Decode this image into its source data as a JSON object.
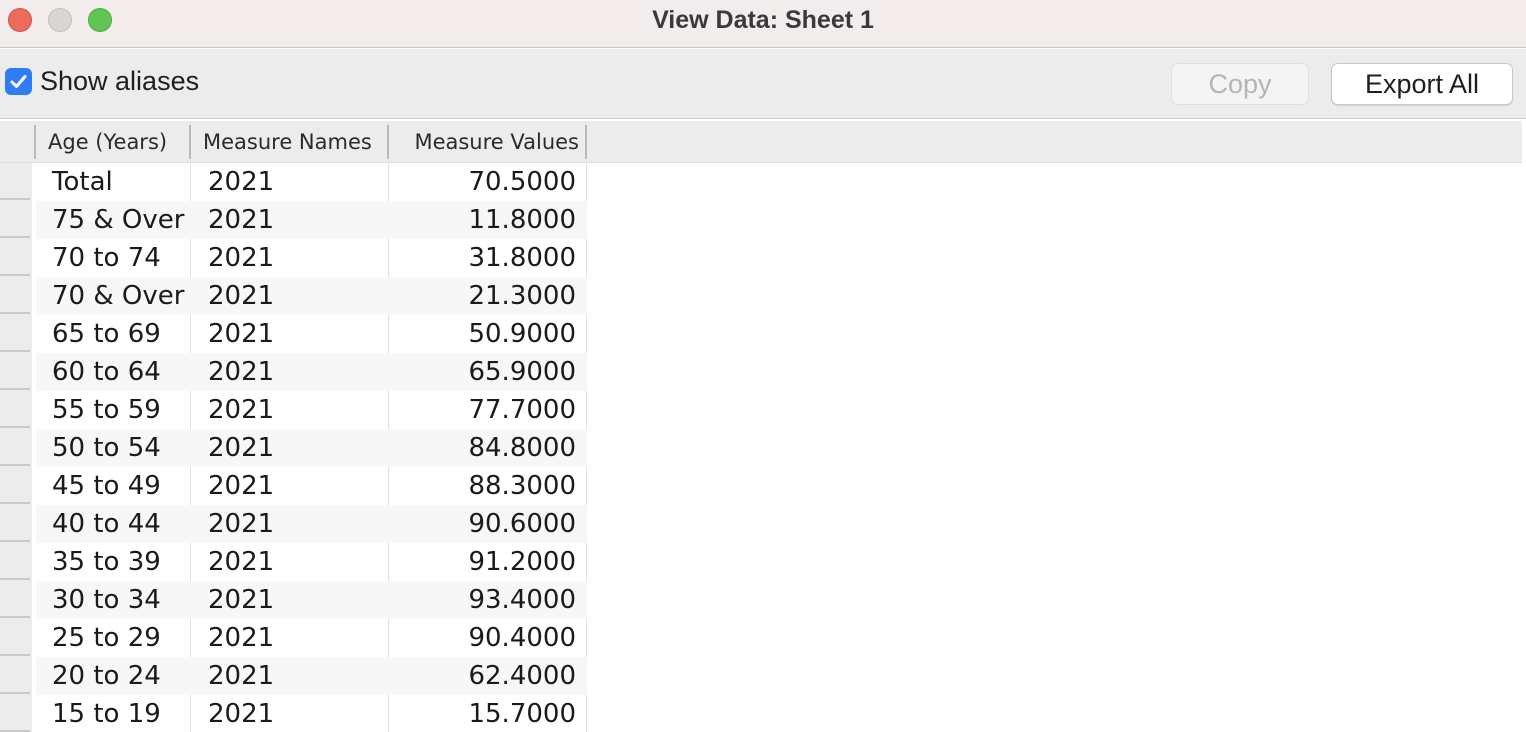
{
  "window": {
    "title": "View Data: Sheet 1"
  },
  "toolbar": {
    "show_aliases_label": "Show aliases",
    "show_aliases_checked": true,
    "copy_label": "Copy",
    "export_all_label": "Export All"
  },
  "table": {
    "headers": {
      "age": "Age (Years)",
      "names": "Measure Names",
      "values": "Measure Values"
    },
    "rows": [
      {
        "age": "Total",
        "names": "2021",
        "values": "70.5000"
      },
      {
        "age": "75 & Over",
        "names": "2021",
        "values": "11.8000"
      },
      {
        "age": "70 to 74",
        "names": "2021",
        "values": "31.8000"
      },
      {
        "age": "70 & Over",
        "names": "2021",
        "values": "21.3000"
      },
      {
        "age": "65 to 69",
        "names": "2021",
        "values": "50.9000"
      },
      {
        "age": "60 to 64",
        "names": "2021",
        "values": "65.9000"
      },
      {
        "age": "55 to 59",
        "names": "2021",
        "values": "77.7000"
      },
      {
        "age": "50 to 54",
        "names": "2021",
        "values": "84.8000"
      },
      {
        "age": "45 to 49",
        "names": "2021",
        "values": "88.3000"
      },
      {
        "age": "40 to 44",
        "names": "2021",
        "values": "90.6000"
      },
      {
        "age": "35 to 39",
        "names": "2021",
        "values": "91.2000"
      },
      {
        "age": "30 to 34",
        "names": "2021",
        "values": "93.4000"
      },
      {
        "age": "25 to 29",
        "names": "2021",
        "values": "90.4000"
      },
      {
        "age": "20 to 24",
        "names": "2021",
        "values": "62.4000"
      },
      {
        "age": "15 to 19",
        "names": "2021",
        "values": "15.7000"
      }
    ]
  },
  "colors": {
    "checkbox": "#2f7cf6",
    "close": "#ec6a5e",
    "minimize": "#d9d5d5",
    "maximize": "#61c454"
  }
}
